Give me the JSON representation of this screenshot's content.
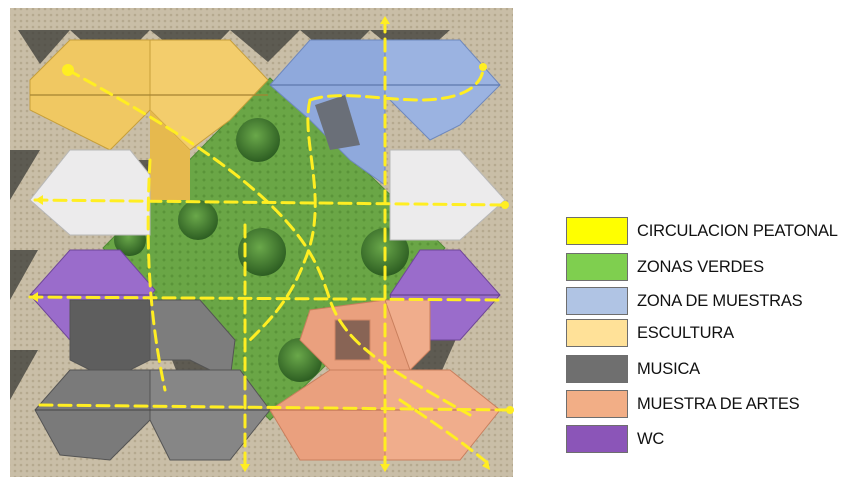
{
  "legend": {
    "items": [
      {
        "key": "circulation",
        "label": "CIRCULACION PEATONAL",
        "color": "#ffff00"
      },
      {
        "key": "green",
        "label": "ZONAS VERDES",
        "color": "#7fcf4f"
      },
      {
        "key": "samples",
        "label": "ZONA DE MUESTRAS",
        "color": "#b0c4e4"
      },
      {
        "key": "sculpture",
        "label": "ESCULTURA",
        "color": "#ffe198"
      },
      {
        "key": "music",
        "label": "MUSICA",
        "color": "#6f6f6f"
      },
      {
        "key": "arts",
        "label": "MUESTRA DE ARTES",
        "color": "#f2ae86"
      },
      {
        "key": "wc",
        "label": "WC",
        "color": "#8b55b8"
      }
    ]
  },
  "palette": {
    "ground": "#c9bea7",
    "shadow": "#3a3a36",
    "white_roof": "#ecebec",
    "yellow_roof": "#f0c862",
    "blue_roof": "#8fa9dc",
    "purple_roof": "#9a6ccb",
    "gray_roof": "#7a7a7a",
    "salmon_roof": "#eaa07e",
    "green_zone": "#6aa646",
    "tree": "#3e7a2e",
    "path": "#ffee22"
  }
}
